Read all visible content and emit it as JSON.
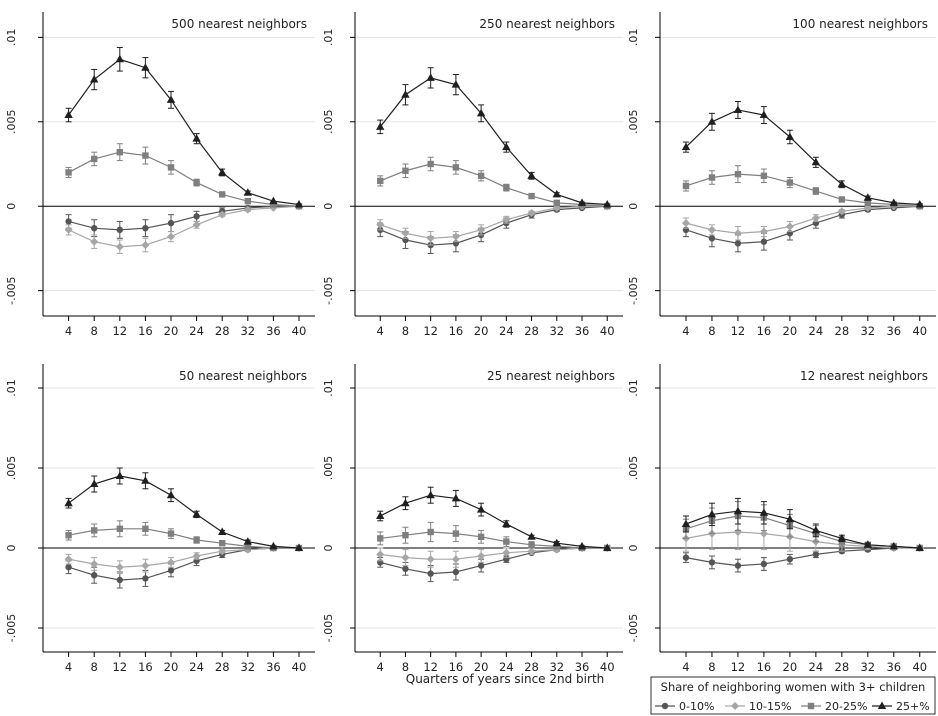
{
  "figure": {
    "xlabel": "Quarters of years since 2nd birth",
    "legend": {
      "title": "Share of neighboring women with 3+ children",
      "position": "bottom-right"
    }
  },
  "series_styles": [
    {
      "name": "0-10%",
      "color": "#555555",
      "marker": "circle"
    },
    {
      "name": "10-15%",
      "color": "#a6a6a6",
      "marker": "diamond"
    },
    {
      "name": "20-25%",
      "color": "#7f7f7f",
      "marker": "square"
    },
    {
      "name": "25+%",
      "color": "#1f1f1f",
      "marker": "triangle"
    }
  ],
  "chart_data": [
    {
      "type": "line",
      "title": "500 nearest neighbors",
      "x": [
        4,
        8,
        12,
        16,
        20,
        24,
        28,
        32,
        36,
        40
      ],
      "ylim": [
        -0.0065,
        0.0115
      ],
      "yticks": [
        -0.005,
        0,
        0.005,
        0.01
      ],
      "ytick_labels": [
        "-.005",
        "0",
        ".005",
        ".01"
      ],
      "series": [
        {
          "name": "0-10%",
          "values": [
            -0.0009,
            -0.0013,
            -0.0014,
            -0.0013,
            -0.001,
            -0.0006,
            -0.0003,
            -0.0001,
            0.0,
            0.0
          ],
          "ci": [
            0.0004,
            0.0005,
            0.0005,
            0.0005,
            0.0005,
            0.0003,
            0.0002,
            0.0001,
            0.0001,
            0.0
          ]
        },
        {
          "name": "10-15%",
          "values": [
            -0.0014,
            -0.0021,
            -0.0024,
            -0.0023,
            -0.0018,
            -0.0011,
            -0.0005,
            -0.0002,
            -0.0001,
            0.0
          ],
          "ci": [
            0.0003,
            0.0004,
            0.0004,
            0.0004,
            0.0003,
            0.0002,
            0.0001,
            0.0001,
            0.0,
            0.0
          ]
        },
        {
          "name": "20-25%",
          "values": [
            0.002,
            0.0028,
            0.0032,
            0.003,
            0.0023,
            0.0014,
            0.0007,
            0.0003,
            0.0001,
            0.0
          ],
          "ci": [
            0.0003,
            0.0004,
            0.0005,
            0.0005,
            0.0004,
            0.0002,
            0.0001,
            0.0001,
            0.0,
            0.0
          ]
        },
        {
          "name": "25+%",
          "values": [
            0.0054,
            0.0075,
            0.0087,
            0.0082,
            0.0063,
            0.004,
            0.002,
            0.0008,
            0.0003,
            0.0001
          ],
          "ci": [
            0.0004,
            0.0006,
            0.0007,
            0.0006,
            0.0005,
            0.0003,
            0.0002,
            0.0001,
            0.0,
            0.0
          ]
        }
      ]
    },
    {
      "type": "line",
      "title": "250 nearest neighbors",
      "x": [
        4,
        8,
        12,
        16,
        20,
        24,
        28,
        32,
        36,
        40
      ],
      "ylim": [
        -0.0065,
        0.0115
      ],
      "yticks": [
        -0.005,
        0,
        0.005,
        0.01
      ],
      "ytick_labels": [
        "-.005",
        "0",
        ".005",
        ".01"
      ],
      "series": [
        {
          "name": "0-10%",
          "values": [
            -0.0014,
            -0.002,
            -0.0023,
            -0.0022,
            -0.0017,
            -0.001,
            -0.0005,
            -0.0002,
            -0.0001,
            0.0
          ],
          "ci": [
            0.0004,
            0.0005,
            0.0005,
            0.0005,
            0.0004,
            0.0003,
            0.0002,
            0.0001,
            0.0,
            0.0
          ]
        },
        {
          "name": "10-15%",
          "values": [
            -0.0011,
            -0.0016,
            -0.0019,
            -0.0018,
            -0.0014,
            -0.0008,
            -0.0004,
            -0.0001,
            0.0,
            0.0
          ],
          "ci": [
            0.0003,
            0.0003,
            0.0004,
            0.0003,
            0.0003,
            0.0002,
            0.0001,
            0.0001,
            0.0,
            0.0
          ]
        },
        {
          "name": "20-25%",
          "values": [
            0.0015,
            0.0021,
            0.0025,
            0.0023,
            0.0018,
            0.0011,
            0.0006,
            0.0002,
            0.0001,
            0.0
          ],
          "ci": [
            0.0003,
            0.0004,
            0.0004,
            0.0004,
            0.0003,
            0.0002,
            0.0001,
            0.0001,
            0.0,
            0.0
          ]
        },
        {
          "name": "25+%",
          "values": [
            0.0047,
            0.0066,
            0.0076,
            0.0072,
            0.0055,
            0.0035,
            0.0018,
            0.0007,
            0.0002,
            0.0001
          ],
          "ci": [
            0.0004,
            0.0006,
            0.0006,
            0.0006,
            0.0005,
            0.0003,
            0.0002,
            0.0001,
            0.0,
            0.0
          ]
        }
      ]
    },
    {
      "type": "line",
      "title": "100 nearest neighbors",
      "x": [
        4,
        8,
        12,
        16,
        20,
        24,
        28,
        32,
        36,
        40
      ],
      "ylim": [
        -0.0065,
        0.0115
      ],
      "yticks": [
        -0.005,
        0,
        0.005,
        0.01
      ],
      "ytick_labels": [
        "-.005",
        "0",
        ".005",
        ".01"
      ],
      "series": [
        {
          "name": "0-10%",
          "values": [
            -0.0014,
            -0.0019,
            -0.0022,
            -0.0021,
            -0.0016,
            -0.001,
            -0.0005,
            -0.0002,
            -0.0001,
            0.0
          ],
          "ci": [
            0.0004,
            0.0005,
            0.0005,
            0.0005,
            0.0004,
            0.0003,
            0.0002,
            0.0001,
            0.0,
            0.0
          ]
        },
        {
          "name": "10-15%",
          "values": [
            -0.001,
            -0.0014,
            -0.0016,
            -0.0015,
            -0.0012,
            -0.0007,
            -0.0003,
            -0.0001,
            0.0,
            0.0
          ],
          "ci": [
            0.0003,
            0.0003,
            0.0004,
            0.0003,
            0.0003,
            0.0002,
            0.0001,
            0.0001,
            0.0,
            0.0
          ]
        },
        {
          "name": "20-25%",
          "values": [
            0.0012,
            0.0017,
            0.0019,
            0.0018,
            0.0014,
            0.0009,
            0.0004,
            0.0002,
            0.0001,
            0.0
          ],
          "ci": [
            0.0003,
            0.0004,
            0.0005,
            0.0004,
            0.0003,
            0.0002,
            0.0001,
            0.0001,
            0.0,
            0.0
          ]
        },
        {
          "name": "25+%",
          "values": [
            0.0035,
            0.005,
            0.0057,
            0.0054,
            0.0041,
            0.0026,
            0.0013,
            0.0005,
            0.0002,
            0.0001
          ],
          "ci": [
            0.0003,
            0.0005,
            0.0005,
            0.0005,
            0.0004,
            0.0003,
            0.0002,
            0.0001,
            0.0,
            0.0
          ]
        }
      ]
    },
    {
      "type": "line",
      "title": "50 nearest neighbors",
      "x": [
        4,
        8,
        12,
        16,
        20,
        24,
        28,
        32,
        36,
        40
      ],
      "ylim": [
        -0.0065,
        0.0115
      ],
      "yticks": [
        -0.005,
        0,
        0.005,
        0.01
      ],
      "ytick_labels": [
        "-.005",
        "0",
        ".005",
        ".01"
      ],
      "series": [
        {
          "name": "0-10%",
          "values": [
            -0.0012,
            -0.0017,
            -0.002,
            -0.0019,
            -0.0014,
            -0.0008,
            -0.0004,
            -0.0001,
            0.0,
            0.0
          ],
          "ci": [
            0.0004,
            0.0005,
            0.0005,
            0.0005,
            0.0004,
            0.0003,
            0.0002,
            0.0001,
            0.0,
            0.0
          ]
        },
        {
          "name": "10-15%",
          "values": [
            -0.0007,
            -0.001,
            -0.0012,
            -0.0011,
            -0.0009,
            -0.0005,
            -0.0002,
            -0.0001,
            0.0,
            0.0
          ],
          "ci": [
            0.0003,
            0.0004,
            0.0004,
            0.0004,
            0.0003,
            0.0002,
            0.0001,
            0.0001,
            0.0,
            0.0
          ]
        },
        {
          "name": "20-25%",
          "values": [
            0.0008,
            0.0011,
            0.0012,
            0.0012,
            0.0009,
            0.0005,
            0.0003,
            0.0001,
            0.0,
            0.0
          ],
          "ci": [
            0.0003,
            0.0004,
            0.0005,
            0.0004,
            0.0003,
            0.0002,
            0.0001,
            0.0001,
            0.0,
            0.0
          ]
        },
        {
          "name": "25+%",
          "values": [
            0.0028,
            0.004,
            0.0045,
            0.0042,
            0.0033,
            0.0021,
            0.001,
            0.0004,
            0.0001,
            0.0
          ],
          "ci": [
            0.0003,
            0.0005,
            0.0005,
            0.0005,
            0.0004,
            0.0002,
            0.0001,
            0.0001,
            0.0,
            0.0
          ]
        }
      ]
    },
    {
      "type": "line",
      "title": "25 nearest neighbors",
      "x": [
        4,
        8,
        12,
        16,
        20,
        24,
        28,
        32,
        36,
        40
      ],
      "ylim": [
        -0.0065,
        0.0115
      ],
      "yticks": [
        -0.005,
        0,
        0.005,
        0.01
      ],
      "ytick_labels": [
        "-.005",
        "0",
        ".005",
        ".01"
      ],
      "series": [
        {
          "name": "0-10%",
          "values": [
            -0.0009,
            -0.0013,
            -0.0016,
            -0.0015,
            -0.0011,
            -0.0007,
            -0.0003,
            -0.0001,
            0.0,
            0.0
          ],
          "ci": [
            0.0003,
            0.0004,
            0.0005,
            0.0005,
            0.0004,
            0.0002,
            0.0001,
            0.0001,
            0.0,
            0.0
          ]
        },
        {
          "name": "10-15%",
          "values": [
            -0.0004,
            -0.0006,
            -0.0007,
            -0.0007,
            -0.0005,
            -0.0003,
            -0.0002,
            -0.0001,
            0.0,
            0.0
          ],
          "ci": [
            0.0004,
            0.0005,
            0.0005,
            0.0005,
            0.0004,
            0.0003,
            0.0002,
            0.0001,
            0.0,
            0.0
          ]
        },
        {
          "name": "20-25%",
          "values": [
            0.0006,
            0.0008,
            0.001,
            0.0009,
            0.0007,
            0.0004,
            0.0002,
            0.0001,
            0.0,
            0.0
          ],
          "ci": [
            0.0004,
            0.0005,
            0.0006,
            0.0005,
            0.0004,
            0.0003,
            0.0002,
            0.0001,
            0.0,
            0.0
          ]
        },
        {
          "name": "25+%",
          "values": [
            0.002,
            0.0028,
            0.0033,
            0.0031,
            0.0024,
            0.0015,
            0.0007,
            0.0003,
            0.0001,
            0.0
          ],
          "ci": [
            0.0003,
            0.0004,
            0.0005,
            0.0005,
            0.0004,
            0.0002,
            0.0001,
            0.0001,
            0.0,
            0.0
          ]
        }
      ]
    },
    {
      "type": "line",
      "title": "12 nearest neighbors",
      "x": [
        4,
        8,
        12,
        16,
        20,
        24,
        28,
        32,
        36,
        40
      ],
      "ylim": [
        -0.0065,
        0.0115
      ],
      "yticks": [
        -0.005,
        0,
        0.005,
        0.01
      ],
      "ytick_labels": [
        "-.005",
        "0",
        ".005",
        ".01"
      ],
      "series": [
        {
          "name": "0-10%",
          "values": [
            -0.0006,
            -0.0009,
            -0.0011,
            -0.001,
            -0.0007,
            -0.0004,
            -0.0002,
            -0.0001,
            0.0,
            0.0
          ],
          "ci": [
            0.0003,
            0.0004,
            0.0004,
            0.0004,
            0.0003,
            0.0002,
            0.0001,
            0.0001,
            0.0,
            0.0
          ]
        },
        {
          "name": "10-15%",
          "values": [
            0.0006,
            0.0009,
            0.001,
            0.0009,
            0.0007,
            0.0004,
            0.0002,
            0.0001,
            0.0,
            0.0
          ],
          "ci": [
            0.0008,
            0.001,
            0.0011,
            0.001,
            0.0009,
            0.0006,
            0.0004,
            0.0002,
            0.0001,
            0.0
          ]
        },
        {
          "name": "20-25%",
          "values": [
            0.0012,
            0.0017,
            0.002,
            0.0019,
            0.0014,
            0.0009,
            0.0004,
            0.0002,
            0.0001,
            0.0
          ],
          "ci": [
            0.0006,
            0.0008,
            0.0009,
            0.0008,
            0.0007,
            0.0005,
            0.0003,
            0.0001,
            0.0,
            0.0
          ]
        },
        {
          "name": "25+%",
          "values": [
            0.0015,
            0.0021,
            0.0023,
            0.0022,
            0.0018,
            0.0011,
            0.0006,
            0.0002,
            0.0001,
            0.0
          ],
          "ci": [
            0.0005,
            0.0007,
            0.0008,
            0.0007,
            0.0006,
            0.0004,
            0.0002,
            0.0001,
            0.0,
            0.0
          ]
        }
      ]
    }
  ]
}
